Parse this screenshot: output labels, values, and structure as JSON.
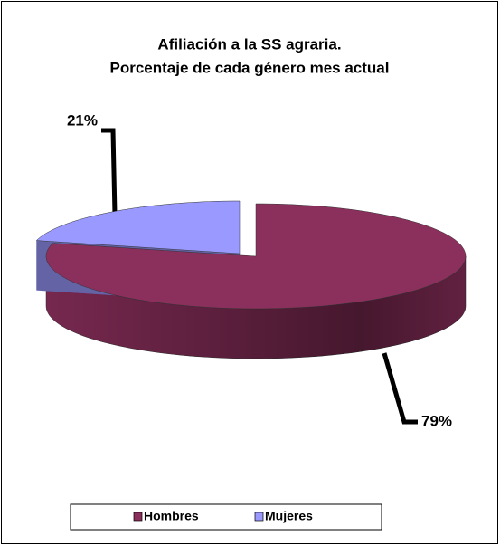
{
  "chart_data": {
    "type": "pie3d",
    "title": [
      "Afiliación a la SS agraria.",
      "Porcentaje de cada género mes actual"
    ],
    "categories": [
      "Hombres",
      "Mujeres"
    ],
    "values": [
      79,
      21
    ],
    "value_labels": [
      "79%",
      "21%"
    ],
    "colors": [
      "#8b2f5c",
      "#9999ff"
    ],
    "legend": "bottom"
  }
}
